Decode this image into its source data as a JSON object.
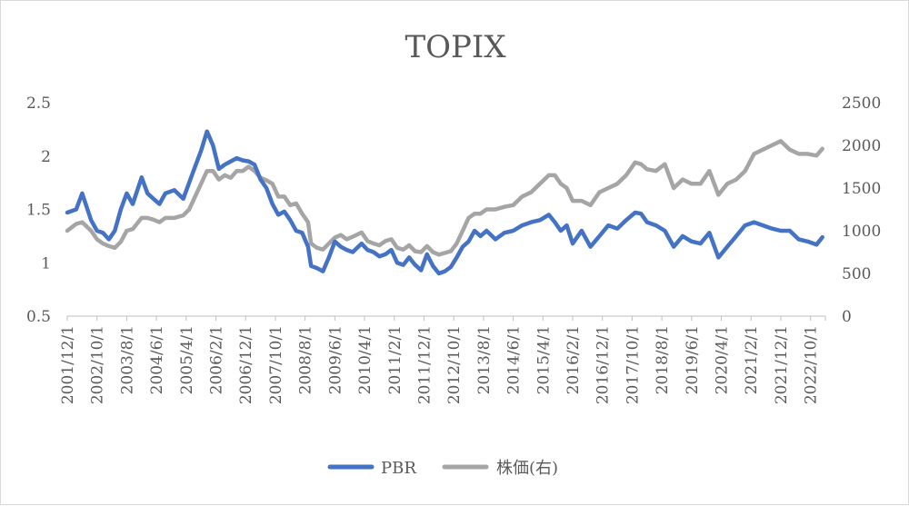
{
  "chart_data": {
    "type": "line",
    "title": "TOPIX",
    "y_left": {
      "ylim": [
        0.5,
        2.5
      ],
      "ticks": [
        "0.5",
        "1",
        "1.5",
        "2",
        "2.5"
      ]
    },
    "y_right": {
      "ylim": [
        0,
        2500
      ],
      "ticks": [
        "0",
        "500",
        "1000",
        "1500",
        "2000",
        "2500"
      ]
    },
    "x_tick_labels": [
      "2001/12/1",
      "2002/10/1",
      "2003/8/1",
      "2004/6/1",
      "2005/4/1",
      "2006/2/1",
      "2006/12/1",
      "2007/10/1",
      "2008/8/1",
      "2009/6/1",
      "2010/4/1",
      "2011/2/1",
      "2011/12/1",
      "2012/10/1",
      "2013/8/1",
      "2014/6/1",
      "2015/4/1",
      "2016/2/1",
      "2016/12/1",
      "2017/10/1",
      "2018/8/1",
      "2019/6/1",
      "2020/4/1",
      "2021/2/1",
      "2021/12/1",
      "2022/10/1"
    ],
    "x_range": [
      "2001/12",
      "2023/3"
    ],
    "grid": false,
    "legend": "bottom",
    "series": [
      {
        "name": "PBR",
        "axis": "left",
        "color": "#4472c4",
        "x": [
          "2001/12",
          "2002/3",
          "2002/5",
          "2002/8",
          "2002/10",
          "2002/12",
          "2003/2",
          "2003/4",
          "2003/6",
          "2003/8",
          "2003/10",
          "2004/1",
          "2004/3",
          "2004/5",
          "2004/7",
          "2004/9",
          "2004/12",
          "2005/3",
          "2005/5",
          "2005/7",
          "2005/9",
          "2005/11",
          "2006/1",
          "2006/3",
          "2006/5",
          "2006/7",
          "2006/9",
          "2006/11",
          "2007/1",
          "2007/3",
          "2007/5",
          "2007/7",
          "2007/9",
          "2007/11",
          "2008/1",
          "2008/3",
          "2008/5",
          "2008/7",
          "2008/9",
          "2008/10",
          "2008/12",
          "2009/2",
          "2009/4",
          "2009/6",
          "2009/8",
          "2009/10",
          "2009/12",
          "2010/3",
          "2010/5",
          "2010/7",
          "2010/9",
          "2010/11",
          "2011/1",
          "2011/3",
          "2011/5",
          "2011/7",
          "2011/9",
          "2011/11",
          "2012/1",
          "2012/3",
          "2012/5",
          "2012/7",
          "2012/9",
          "2012/11",
          "2013/1",
          "2013/3",
          "2013/5",
          "2013/7",
          "2013/9",
          "2013/12",
          "2014/3",
          "2014/6",
          "2014/9",
          "2014/12",
          "2015/3",
          "2015/6",
          "2015/8",
          "2015/10",
          "2015/12",
          "2016/2",
          "2016/5",
          "2016/8",
          "2016/11",
          "2017/2",
          "2017/5",
          "2017/8",
          "2017/11",
          "2018/1",
          "2018/3",
          "2018/6",
          "2018/9",
          "2018/12",
          "2019/3",
          "2019/6",
          "2019/9",
          "2019/12",
          "2020/3",
          "2020/6",
          "2020/9",
          "2020/12",
          "2021/3",
          "2021/6",
          "2021/9",
          "2021/12",
          "2022/3",
          "2022/6",
          "2022/9",
          "2022/12",
          "2023/2"
        ],
        "values": [
          1.47,
          1.5,
          1.65,
          1.4,
          1.3,
          1.28,
          1.22,
          1.3,
          1.5,
          1.65,
          1.55,
          1.8,
          1.65,
          1.6,
          1.55,
          1.65,
          1.68,
          1.6,
          1.75,
          1.9,
          2.05,
          2.23,
          2.1,
          1.88,
          1.92,
          1.95,
          1.98,
          1.96,
          1.95,
          1.92,
          1.78,
          1.7,
          1.55,
          1.45,
          1.48,
          1.4,
          1.3,
          1.28,
          1.15,
          0.97,
          0.95,
          0.92,
          1.05,
          1.2,
          1.15,
          1.12,
          1.1,
          1.18,
          1.12,
          1.1,
          1.06,
          1.08,
          1.12,
          1.0,
          0.98,
          1.05,
          0.98,
          0.93,
          1.08,
          0.97,
          0.9,
          0.92,
          0.96,
          1.05,
          1.15,
          1.2,
          1.3,
          1.25,
          1.3,
          1.22,
          1.28,
          1.3,
          1.35,
          1.38,
          1.4,
          1.45,
          1.38,
          1.3,
          1.35,
          1.18,
          1.3,
          1.15,
          1.25,
          1.35,
          1.32,
          1.4,
          1.47,
          1.46,
          1.38,
          1.35,
          1.3,
          1.15,
          1.25,
          1.2,
          1.18,
          1.28,
          1.05,
          1.15,
          1.25,
          1.35,
          1.38,
          1.35,
          1.32,
          1.3,
          1.3,
          1.22,
          1.2,
          1.17,
          1.24
        ]
      },
      {
        "name": "株価(右)",
        "axis": "right",
        "color": "#a5a5a5",
        "x": [
          "2001/12",
          "2002/3",
          "2002/5",
          "2002/8",
          "2002/10",
          "2002/12",
          "2003/2",
          "2003/4",
          "2003/6",
          "2003/8",
          "2003/10",
          "2004/1",
          "2004/3",
          "2004/5",
          "2004/7",
          "2004/9",
          "2004/12",
          "2005/3",
          "2005/5",
          "2005/7",
          "2005/9",
          "2005/11",
          "2006/1",
          "2006/3",
          "2006/5",
          "2006/7",
          "2006/9",
          "2006/11",
          "2007/1",
          "2007/3",
          "2007/5",
          "2007/7",
          "2007/9",
          "2007/11",
          "2008/1",
          "2008/3",
          "2008/5",
          "2008/7",
          "2008/9",
          "2008/10",
          "2008/12",
          "2009/2",
          "2009/4",
          "2009/6",
          "2009/8",
          "2009/10",
          "2009/12",
          "2010/3",
          "2010/5",
          "2010/7",
          "2010/9",
          "2010/11",
          "2011/1",
          "2011/3",
          "2011/5",
          "2011/7",
          "2011/9",
          "2011/11",
          "2012/1",
          "2012/3",
          "2012/5",
          "2012/7",
          "2012/9",
          "2012/11",
          "2013/1",
          "2013/3",
          "2013/5",
          "2013/7",
          "2013/9",
          "2013/12",
          "2014/3",
          "2014/6",
          "2014/9",
          "2014/12",
          "2015/3",
          "2015/6",
          "2015/8",
          "2015/10",
          "2015/12",
          "2016/2",
          "2016/5",
          "2016/8",
          "2016/11",
          "2017/2",
          "2017/5",
          "2017/8",
          "2017/11",
          "2018/1",
          "2018/3",
          "2018/6",
          "2018/9",
          "2018/12",
          "2019/3",
          "2019/6",
          "2019/9",
          "2019/12",
          "2020/3",
          "2020/6",
          "2020/9",
          "2020/12",
          "2021/3",
          "2021/6",
          "2021/9",
          "2021/12",
          "2022/3",
          "2022/6",
          "2022/9",
          "2022/12",
          "2023/2"
        ],
        "values": [
          1000,
          1080,
          1100,
          1000,
          900,
          850,
          820,
          800,
          870,
          1000,
          1020,
          1150,
          1150,
          1130,
          1100,
          1150,
          1150,
          1180,
          1250,
          1400,
          1550,
          1700,
          1700,
          1600,
          1650,
          1620,
          1700,
          1700,
          1750,
          1700,
          1620,
          1590,
          1550,
          1400,
          1400,
          1300,
          1320,
          1200,
          1100,
          850,
          800,
          780,
          850,
          920,
          950,
          900,
          930,
          980,
          880,
          850,
          830,
          880,
          900,
          800,
          780,
          830,
          760,
          750,
          820,
          750,
          720,
          740,
          760,
          850,
          1000,
          1150,
          1200,
          1200,
          1250,
          1250,
          1280,
          1300,
          1400,
          1450,
          1550,
          1650,
          1650,
          1550,
          1500,
          1350,
          1350,
          1300,
          1450,
          1500,
          1550,
          1650,
          1800,
          1780,
          1720,
          1700,
          1780,
          1500,
          1600,
          1550,
          1550,
          1700,
          1420,
          1550,
          1600,
          1700,
          1900,
          1950,
          2000,
          2050,
          1950,
          1900,
          1900,
          1880,
          1960
        ]
      }
    ]
  }
}
